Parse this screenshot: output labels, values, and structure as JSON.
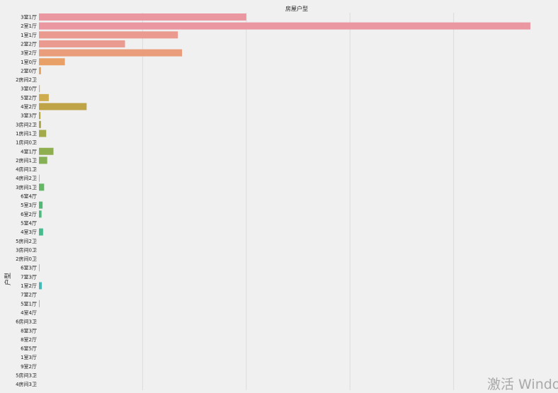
{
  "chart_data": {
    "type": "bar",
    "orientation": "horizontal",
    "title": "房屋户型",
    "ylabel": "户型",
    "xlabel": "",
    "grid": true,
    "xlim": [
      0,
      4900
    ],
    "categories": [
      "3室1厅",
      "2室1厅",
      "1室1厅",
      "2室2厅",
      "3室2厅",
      "1室0厅",
      "2室0厅",
      "2房间2卫",
      "3室0厅",
      "5室2厅",
      "4室2厅",
      "3室3厅",
      "3房间2卫",
      "1房间1卫",
      "1房间0卫",
      "4室1厅",
      "2房间1卫",
      "4房间1卫",
      "4房间2卫",
      "3房间1卫",
      "6室4厅",
      "5室3厅",
      "6室2厅",
      "5室4厅",
      "4室3厅",
      "5房间2卫",
      "3房间0卫",
      "2房间0卫",
      "6室3厅",
      "7室3厅",
      "1室2厅",
      "7室2厅",
      "5室1厅",
      "4室4厅",
      "6房间3卫",
      "8室3厅",
      "8室2厅",
      "6室5厅",
      "1室3厅",
      "9室2厅",
      "5房间3卫",
      "4房间3卫"
    ],
    "values": [
      2000,
      4740,
      1340,
      830,
      1380,
      250,
      20,
      0,
      8,
      95,
      460,
      15,
      20,
      70,
      0,
      140,
      80,
      0,
      5,
      50,
      0,
      35,
      25,
      0,
      40,
      0,
      0,
      0,
      5,
      0,
      28,
      0,
      5,
      0,
      0,
      0,
      0,
      0,
      0,
      0,
      0,
      0
    ],
    "colors": [
      "#ea97a1",
      "#ea97a1",
      "#ea9a8f",
      "#ea9a8f",
      "#ea9d7a",
      "#e9a066",
      "#e7a45a",
      "#e1a855",
      "#d9ab51",
      "#cfad4f",
      "#bfa447",
      "#b6a648",
      "#aca84a",
      "#a3aa4c",
      "#98ac4e",
      "#8fae50",
      "#85b055",
      "#7ab35a",
      "#6fb55f",
      "#64b765",
      "#5ab96b",
      "#52b974",
      "#4bba7c",
      "#48ba84",
      "#46bb8c",
      "#45bb94",
      "#44bb9b",
      "#44bba2",
      "#45bba9",
      "#46bbb0",
      "#48b8b6",
      "#4ab5bb",
      "#4db1c0",
      "#51adc5",
      "#55a9ca",
      "#5aa4cf",
      "#609fd4",
      "#669ad8",
      "#6c95dc",
      "#7290e0",
      "#788be3",
      "#7e86e6"
    ]
  },
  "watermark": "激活 Windo"
}
